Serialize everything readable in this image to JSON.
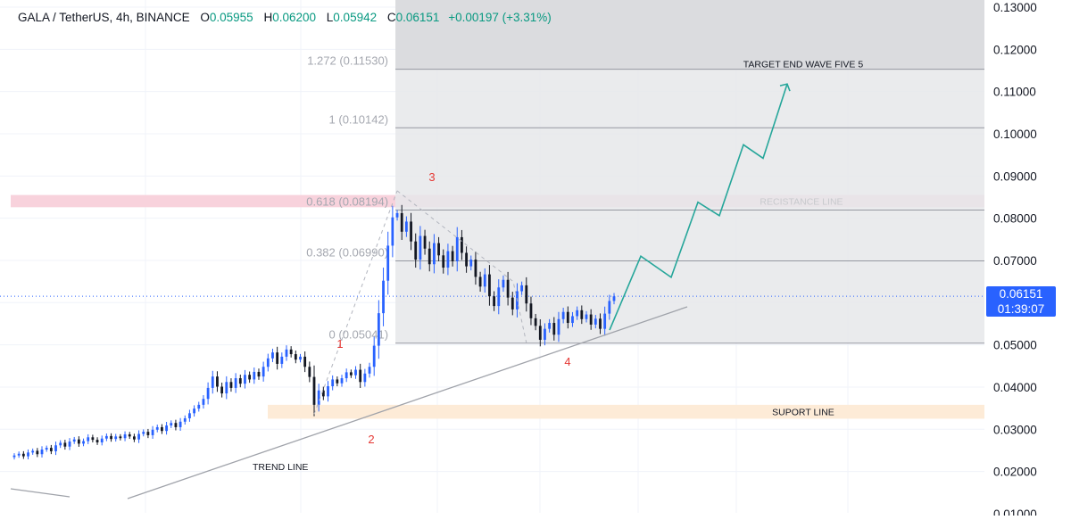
{
  "header": {
    "symbol": "GALA / TetherUS, 4h, BINANCE",
    "open_label": "O",
    "open": "0.05955",
    "high_label": "H",
    "high": "0.06200",
    "low_label": "L",
    "low": "0.05942",
    "close_label": "C",
    "close": "0.06151",
    "change": "+0.00197 (+3.31%)"
  },
  "price_tag": {
    "price": "0.06151",
    "countdown": "01:39:07"
  },
  "colors": {
    "up": "#2962ff",
    "down": "#131722",
    "projection": "#26a69a",
    "wave_label": "#e53935",
    "resistance_band": "#f8d2dc",
    "support_band": "#fdebd7",
    "fib_zone": "#e6e7ea",
    "fib_top_zone": "#d9dadd"
  },
  "chart_data": {
    "type": "candlestick",
    "symbol": "GALA / TetherUS",
    "timeframe": "4h",
    "exchange": "BINANCE",
    "ylim": [
      0.015,
      0.13
    ],
    "yticks": [
      "0.13000",
      "0.12000",
      "0.11000",
      "0.10000",
      "0.09000",
      "0.08000",
      "0.07000",
      "0.06000",
      "0.05000",
      "0.04000",
      "0.03000",
      "0.02000",
      "0.01000"
    ],
    "last_price": 0.06151,
    "grid": true,
    "closes": [
      0.0238,
      0.0242,
      0.0236,
      0.0245,
      0.0249,
      0.0241,
      0.0252,
      0.0256,
      0.0248,
      0.0262,
      0.0268,
      0.0259,
      0.0271,
      0.0276,
      0.0266,
      0.0272,
      0.0281,
      0.0275,
      0.0269,
      0.0278,
      0.0284,
      0.0277,
      0.0283,
      0.0279,
      0.0288,
      0.0283,
      0.0276,
      0.0289,
      0.0294,
      0.0286,
      0.0299,
      0.0305,
      0.0296,
      0.0309,
      0.0315,
      0.0305,
      0.0318,
      0.0326,
      0.0338,
      0.0349,
      0.0358,
      0.0372,
      0.0398,
      0.0425,
      0.0401,
      0.0385,
      0.0412,
      0.0398,
      0.0421,
      0.0408,
      0.0429,
      0.0418,
      0.0436,
      0.0425,
      0.0448,
      0.0468,
      0.0482,
      0.0455,
      0.0472,
      0.0489,
      0.0478,
      0.0465,
      0.0472,
      0.0448,
      0.0424,
      0.0358,
      0.0392,
      0.0378,
      0.0402,
      0.0418,
      0.0409,
      0.0421,
      0.0435,
      0.0428,
      0.0441,
      0.0412,
      0.0432,
      0.0448,
      0.0498,
      0.0575,
      0.0652,
      0.0735,
      0.0802,
      0.0812,
      0.0768,
      0.0792,
      0.0745,
      0.0702,
      0.0758,
      0.0728,
      0.0691,
      0.0741,
      0.0712,
      0.0683,
      0.0722,
      0.0698,
      0.0755,
      0.0718,
      0.0686,
      0.0702,
      0.0661,
      0.0638,
      0.0667,
      0.0615,
      0.0592,
      0.0636,
      0.0654,
      0.0612,
      0.0584,
      0.0627,
      0.0641,
      0.0598,
      0.0563,
      0.0545,
      0.0512,
      0.0538,
      0.0552,
      0.0524,
      0.0561,
      0.0578,
      0.0552,
      0.0568,
      0.0582,
      0.0561,
      0.0572,
      0.0548,
      0.0562,
      0.0538,
      0.0574,
      0.0604,
      0.0615
    ],
    "fib_levels": [
      {
        "label": "0 (0.05041)",
        "value": 0.05041
      },
      {
        "label": "0.382 (0.06990)",
        "value": 0.0699
      },
      {
        "label": "0.618 (0.08194)",
        "value": 0.08194
      },
      {
        "label": "1 (0.10142)",
        "value": 0.10142
      },
      {
        "label": "1.272 (0.11530)",
        "value": 0.1153
      }
    ],
    "zones": [
      {
        "label": "RECISTANCE LINE",
        "from": 0.0826,
        "to": 0.0855
      },
      {
        "label": "SUPORT LINE",
        "from": 0.0325,
        "to": 0.0358
      }
    ],
    "trend_line_label": "TREND LINE",
    "target_label": "TARGET END WAVE FIVE 5",
    "wave_labels": [
      {
        "label": "1",
        "value": 0.0495
      },
      {
        "label": "2",
        "value": 0.0336
      },
      {
        "label": "3",
        "value": 0.087
      },
      {
        "label": "4",
        "value": 0.05
      }
    ],
    "projection_path": [
      0.0535,
      0.071,
      0.066,
      0.0838,
      0.0806,
      0.0974,
      0.0942,
      0.1118
    ]
  }
}
